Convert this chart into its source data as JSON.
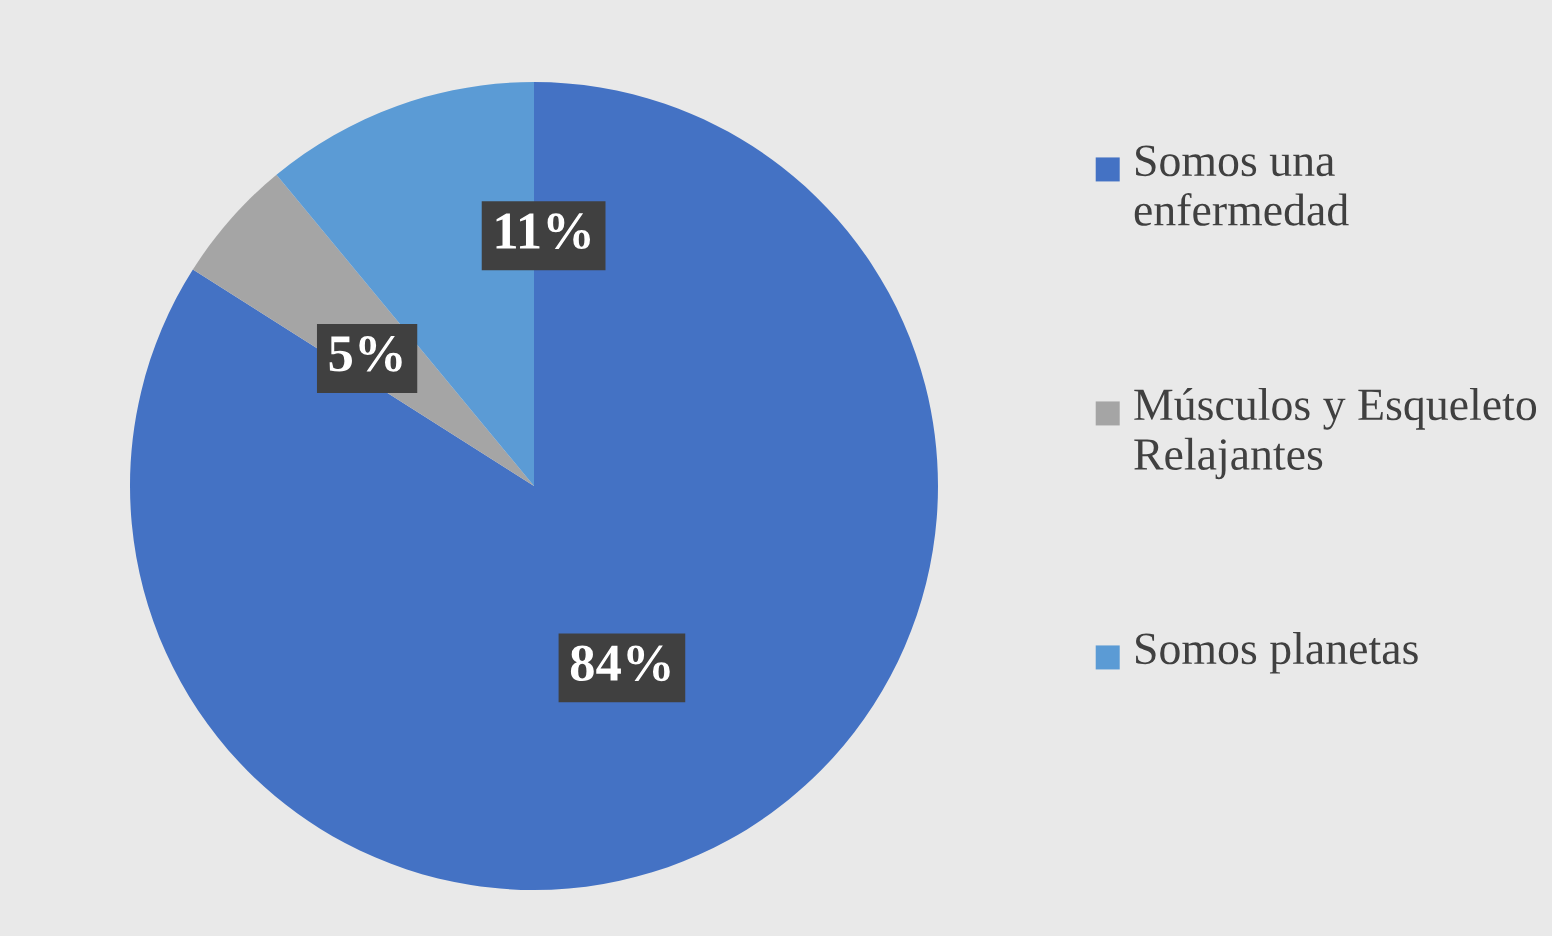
{
  "chart_data": {
    "type": "pie",
    "categories": [
      "Somos una enfermedad",
      "Músculos y Esqueleto Relajantes",
      "Somos planetas"
    ],
    "values": [
      84,
      5,
      11
    ],
    "colors": [
      "#4472c4",
      "#a5a5a5",
      "#5b9bd5"
    ],
    "value_labels": [
      "84%",
      "5%",
      "11%"
    ],
    "legend": "right"
  }
}
